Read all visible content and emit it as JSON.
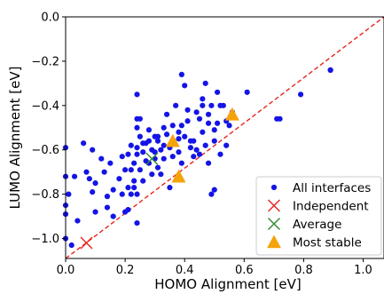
{
  "chart_data": {
    "type": "scatter",
    "xlabel": "HOMO Alignment [eV]",
    "ylabel": "LUMO Alignment [eV]",
    "xlim": [
      0.0,
      1.07
    ],
    "ylim": [
      -1.09,
      0.0
    ],
    "xticks": [
      0.0,
      0.2,
      0.4,
      0.6,
      0.8,
      1.0
    ],
    "yticks": [
      0.0,
      -0.2,
      -0.4,
      -0.6,
      -0.8,
      -1.0
    ],
    "xtick_labels": [
      "0.0",
      "0.2",
      "0.4",
      "0.6",
      "0.8",
      "1.0"
    ],
    "ytick_labels": [
      "0.0",
      "−0.2",
      "−0.4",
      "−0.6",
      "−0.8",
      "−1.0"
    ],
    "grid": false,
    "legend_position": "lower-right",
    "reference_line": {
      "style": "dashed",
      "color": "#e8231f",
      "points": [
        [
          0.0,
          -1.09
        ],
        [
          1.07,
          0.0
        ]
      ]
    },
    "series": [
      {
        "name": "All interfaces",
        "marker": "circle",
        "color": "#1414e6",
        "points": [
          [
            0.0,
            -0.59
          ],
          [
            0.0,
            -0.72
          ],
          [
            0.01,
            -0.8
          ],
          [
            0.0,
            -0.85
          ],
          [
            0.0,
            -0.89
          ],
          [
            0.0,
            -1.0
          ],
          [
            0.02,
            -1.03
          ],
          [
            0.03,
            -0.72
          ],
          [
            0.04,
            -0.92
          ],
          [
            0.06,
            -0.57
          ],
          [
            0.07,
            -0.7
          ],
          [
            0.08,
            -0.73
          ],
          [
            0.09,
            -0.6
          ],
          [
            0.09,
            -0.79
          ],
          [
            0.1,
            -0.75
          ],
          [
            0.1,
            -0.88
          ],
          [
            0.12,
            -0.64
          ],
          [
            0.13,
            -0.7
          ],
          [
            0.14,
            -0.81
          ],
          [
            0.14,
            -0.86
          ],
          [
            0.15,
            -0.66
          ],
          [
            0.16,
            -0.9
          ],
          [
            0.16,
            -0.78
          ],
          [
            0.18,
            -0.73
          ],
          [
            0.19,
            -0.8
          ],
          [
            0.19,
            -0.63
          ],
          [
            0.2,
            -0.88
          ],
          [
            0.2,
            -0.69
          ],
          [
            0.21,
            -0.77
          ],
          [
            0.21,
            -0.62
          ],
          [
            0.21,
            -0.87
          ],
          [
            0.22,
            -0.69
          ],
          [
            0.22,
            -0.58
          ],
          [
            0.22,
            -0.8
          ],
          [
            0.23,
            -0.74
          ],
          [
            0.23,
            -0.77
          ],
          [
            0.23,
            -0.66
          ],
          [
            0.24,
            -0.5
          ],
          [
            0.24,
            -0.59
          ],
          [
            0.24,
            -0.46
          ],
          [
            0.24,
            -0.35
          ],
          [
            0.24,
            -0.62
          ],
          [
            0.24,
            -0.8
          ],
          [
            0.24,
            -0.93
          ],
          [
            0.25,
            -0.46
          ],
          [
            0.25,
            -0.54
          ],
          [
            0.25,
            -0.69
          ],
          [
            0.26,
            -0.57
          ],
          [
            0.26,
            -0.74
          ],
          [
            0.26,
            -0.61
          ],
          [
            0.27,
            -0.57
          ],
          [
            0.27,
            -0.65
          ],
          [
            0.28,
            -0.51
          ],
          [
            0.28,
            -0.56
          ],
          [
            0.28,
            -0.66
          ],
          [
            0.29,
            -0.6
          ],
          [
            0.29,
            -0.71
          ],
          [
            0.3,
            -0.54
          ],
          [
            0.3,
            -0.61
          ],
          [
            0.3,
            -0.64
          ],
          [
            0.31,
            -0.54
          ],
          [
            0.31,
            -0.68
          ],
          [
            0.31,
            -0.56
          ],
          [
            0.32,
            -0.6
          ],
          [
            0.32,
            -0.71
          ],
          [
            0.33,
            -0.64
          ],
          [
            0.33,
            -0.58
          ],
          [
            0.33,
            -0.5
          ],
          [
            0.34,
            -0.53
          ],
          [
            0.34,
            -0.44
          ],
          [
            0.35,
            -0.59
          ],
          [
            0.35,
            -0.77
          ],
          [
            0.36,
            -0.63
          ],
          [
            0.36,
            -0.49
          ],
          [
            0.36,
            -0.57
          ],
          [
            0.37,
            -0.4
          ],
          [
            0.38,
            -0.52
          ],
          [
            0.38,
            -0.55
          ],
          [
            0.38,
            -0.61
          ],
          [
            0.39,
            -0.26
          ],
          [
            0.39,
            -0.49
          ],
          [
            0.39,
            -0.66
          ],
          [
            0.4,
            -0.31
          ],
          [
            0.4,
            -0.54
          ],
          [
            0.41,
            -0.47
          ],
          [
            0.41,
            -0.42
          ],
          [
            0.42,
            -0.59
          ],
          [
            0.42,
            -0.56
          ],
          [
            0.43,
            -0.56
          ],
          [
            0.43,
            -0.63
          ],
          [
            0.44,
            -0.43
          ],
          [
            0.44,
            -0.6
          ],
          [
            0.45,
            -0.46
          ],
          [
            0.45,
            -0.62
          ],
          [
            0.46,
            -0.4
          ],
          [
            0.46,
            -0.37
          ],
          [
            0.46,
            -0.52
          ],
          [
            0.47,
            -0.58
          ],
          [
            0.47,
            -0.3
          ],
          [
            0.48,
            -0.44
          ],
          [
            0.48,
            -0.66
          ],
          [
            0.48,
            -0.48
          ],
          [
            0.49,
            -0.4
          ],
          [
            0.49,
            -0.8
          ],
          [
            0.5,
            -0.56
          ],
          [
            0.5,
            -0.51
          ],
          [
            0.5,
            -0.78
          ],
          [
            0.51,
            -0.34
          ],
          [
            0.51,
            -0.48
          ],
          [
            0.52,
            -0.62
          ],
          [
            0.52,
            -0.4
          ],
          [
            0.53,
            -0.4
          ],
          [
            0.54,
            -0.47
          ],
          [
            0.54,
            -0.58
          ],
          [
            0.55,
            -0.49
          ],
          [
            0.56,
            -0.43
          ],
          [
            0.61,
            -0.34
          ],
          [
            0.71,
            -0.46
          ],
          [
            0.72,
            -0.46
          ],
          [
            0.79,
            -0.35
          ],
          [
            0.89,
            -0.24
          ],
          [
            0.89,
            -0.24
          ]
        ]
      },
      {
        "name": "Independent",
        "marker": "x",
        "color": "#e8231f",
        "points": [
          [
            0.07,
            -1.02
          ]
        ]
      },
      {
        "name": "Average",
        "marker": "x",
        "color": "#2e8b2e",
        "points": [
          [
            0.29,
            -0.64
          ]
        ]
      },
      {
        "name": "Most stable",
        "marker": "triangle",
        "color": "#f5a30a",
        "points": [
          [
            0.56,
            -0.44
          ],
          [
            0.36,
            -0.56
          ],
          [
            0.38,
            -0.72
          ]
        ]
      }
    ]
  }
}
